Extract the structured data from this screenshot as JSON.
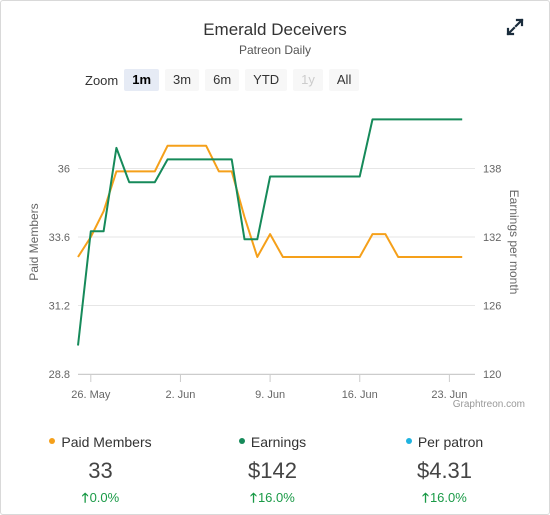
{
  "widget": {
    "title": "Emerald Deceivers",
    "subtitle": "Patreon Daily",
    "expand_icon": "expand-arrows-icon"
  },
  "zoom": {
    "label": "Zoom",
    "buttons": [
      {
        "label": "1m",
        "state": "active"
      },
      {
        "label": "3m",
        "state": "normal"
      },
      {
        "label": "6m",
        "state": "normal"
      },
      {
        "label": "YTD",
        "state": "normal"
      },
      {
        "label": "1y",
        "state": "disabled"
      },
      {
        "label": "All",
        "state": "normal"
      }
    ]
  },
  "chart_data": {
    "type": "line",
    "x_ticks": [
      "26. May",
      "2. Jun",
      "9. Jun",
      "16. Jun",
      "23. Jun"
    ],
    "x_tick_days": [
      0,
      7,
      14,
      21,
      28
    ],
    "xlim_days": [
      -1,
      30
    ],
    "credit": "Graphtreon.com",
    "y_left": {
      "label": "Paid Members",
      "ticks": [
        "28.8",
        "31.2",
        "33.6",
        "36"
      ],
      "tick_values": [
        28.8,
        31.2,
        33.6,
        36
      ],
      "range": [
        28.8,
        38.4
      ]
    },
    "y_right": {
      "label": "Earnings per month",
      "ticks": [
        "120",
        "126",
        "132",
        "138"
      ],
      "tick_values": [
        120,
        126,
        132,
        138
      ],
      "range": [
        120,
        144
      ]
    },
    "grid": true,
    "series": [
      {
        "name": "Paid Members",
        "axis": "left",
        "color": "#f5a01a",
        "points": [
          [
            -1,
            32.9
          ],
          [
            0,
            33.6
          ],
          [
            1,
            34.5
          ],
          [
            2,
            35.9
          ],
          [
            3,
            35.9
          ],
          [
            4,
            35.9
          ],
          [
            5,
            35.9
          ],
          [
            6,
            36.8
          ],
          [
            7,
            36.8
          ],
          [
            8,
            36.8
          ],
          [
            9,
            36.8
          ],
          [
            10,
            35.9
          ],
          [
            11,
            35.9
          ],
          [
            12,
            34.3
          ],
          [
            13,
            32.9
          ],
          [
            14,
            33.7
          ],
          [
            15,
            32.9
          ],
          [
            16,
            32.9
          ],
          [
            17,
            32.9
          ],
          [
            18,
            32.9
          ],
          [
            19,
            32.9
          ],
          [
            20,
            32.9
          ],
          [
            21,
            32.9
          ],
          [
            22,
            33.7
          ],
          [
            23,
            33.7
          ],
          [
            24,
            32.9
          ],
          [
            25,
            32.9
          ],
          [
            26,
            32.9
          ],
          [
            27,
            32.9
          ],
          [
            28,
            32.9
          ],
          [
            29,
            32.9
          ]
        ]
      },
      {
        "name": "Earnings",
        "axis": "right",
        "color": "#168a5a",
        "points": [
          [
            -1,
            122.5
          ],
          [
            0,
            132.5
          ],
          [
            1,
            132.5
          ],
          [
            2,
            139.8
          ],
          [
            3,
            136.8
          ],
          [
            4,
            136.8
          ],
          [
            5,
            136.8
          ],
          [
            6,
            138.8
          ],
          [
            7,
            138.8
          ],
          [
            8,
            138.8
          ],
          [
            9,
            138.8
          ],
          [
            10,
            138.8
          ],
          [
            11,
            138.8
          ],
          [
            12,
            131.8
          ],
          [
            13,
            131.8
          ],
          [
            14,
            137.3
          ],
          [
            15,
            137.3
          ],
          [
            16,
            137.3
          ],
          [
            17,
            137.3
          ],
          [
            18,
            137.3
          ],
          [
            19,
            137.3
          ],
          [
            20,
            137.3
          ],
          [
            21,
            137.3
          ],
          [
            22,
            142.3
          ],
          [
            23,
            142.3
          ],
          [
            24,
            142.3
          ],
          [
            25,
            142.3
          ],
          [
            26,
            142.3
          ],
          [
            27,
            142.3
          ],
          [
            28,
            142.3
          ],
          [
            29,
            142.3
          ]
        ]
      }
    ]
  },
  "stats": [
    {
      "label": "Paid Members",
      "dot_color": "#f5a01a",
      "value": "33",
      "change": "0.0%",
      "change_color": "#1a9a47"
    },
    {
      "label": "Earnings",
      "dot_color": "#168a5a",
      "value": "$142",
      "change": "16.0%",
      "change_color": "#1a9a47"
    },
    {
      "label": "Per patron",
      "dot_color": "#1fb3e0",
      "value": "$4.31",
      "change": "16.0%",
      "change_color": "#1a9a47"
    }
  ]
}
